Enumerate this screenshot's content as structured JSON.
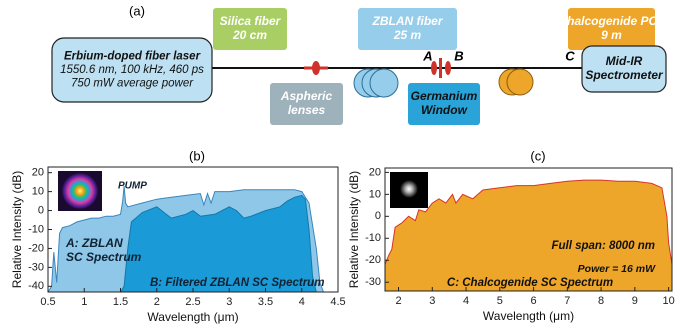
{
  "diagram": {
    "label": "(a)",
    "boxes": [
      {
        "lines": [
          "Silica fiber",
          "20 cm"
        ],
        "color": "#a9cf64"
      },
      {
        "lines": [
          "ZBLAN fiber",
          "25 m"
        ],
        "color": "#95cdea"
      },
      {
        "lines": [
          "Chalcogenide PCF",
          "9 m"
        ],
        "color": "#eea62a"
      },
      {
        "lines": [
          "Erbium-doped fiber laser",
          "1550.6 nm, 100 kHz, 460 ps",
          "750 mW average power"
        ],
        "color": "#bde0f3"
      },
      {
        "lines": [
          "Mid-IR",
          "Spectrometer"
        ],
        "color": "#bde0f3"
      },
      {
        "lines": [
          "Aspheric",
          "lenses"
        ],
        "color": "#9db2ba"
      },
      {
        "lines": [
          "Germanium",
          "Window"
        ],
        "color": "#2aa3d8"
      }
    ],
    "markers": [
      "A",
      "B",
      "C"
    ]
  },
  "chart_data": [
    {
      "type": "area",
      "title": "(b)",
      "xlabel": "Wavelength (μm)",
      "ylabel": "Relative Intensity (dB)",
      "xlim": [
        0.5,
        4.5
      ],
      "ylim": [
        -43,
        23
      ],
      "xticks": [
        0.5,
        1,
        1.5,
        2,
        2.5,
        3,
        3.5,
        4,
        4.5
      ],
      "yticks": [
        -40,
        -30,
        -20,
        -10,
        0,
        10,
        20
      ],
      "series": [
        {
          "name": "A: ZBLAN SC Spectrum",
          "color": "#8ec7e8",
          "edge": "#3a86bd",
          "x": [
            0.5,
            0.55,
            0.58,
            0.62,
            0.66,
            0.7,
            0.8,
            0.9,
            1.0,
            1.1,
            1.2,
            1.3,
            1.4,
            1.5,
            1.53,
            1.55,
            1.57,
            1.6,
            1.8,
            2.0,
            2.2,
            2.4,
            2.6,
            2.65,
            2.7,
            2.75,
            2.8,
            3.0,
            3.2,
            3.4,
            3.6,
            3.8,
            3.9,
            4.0,
            4.1,
            4.2,
            4.25,
            4.3,
            4.5
          ],
          "values": [
            -43,
            -40,
            -22,
            -38,
            -12,
            -9,
            -8,
            -6,
            -5,
            -4,
            -4,
            -3,
            -3,
            -2,
            5,
            13,
            4,
            2,
            4,
            6,
            7,
            8,
            9,
            3,
            9,
            4,
            10,
            10,
            11,
            11,
            11,
            11,
            11,
            10,
            4,
            -20,
            -38,
            -43,
            -43
          ]
        },
        {
          "name": "B: Filtered ZBLAN SC Spectrum",
          "color": "#1a9ad6",
          "edge": "#1478a8",
          "x": [
            1.5,
            1.55,
            1.6,
            1.65,
            1.8,
            2.0,
            2.1,
            2.2,
            2.4,
            2.5,
            2.6,
            2.8,
            3.0,
            3.1,
            3.2,
            3.3,
            3.5,
            3.7,
            3.8,
            3.9,
            4.0,
            4.05,
            4.1,
            4.15,
            4.2
          ],
          "values": [
            -43,
            -40,
            -20,
            -6,
            -1,
            2,
            -1,
            -4,
            -2,
            0,
            -3,
            -2,
            2,
            0,
            -4,
            -3,
            0,
            2,
            5,
            7,
            8,
            6,
            -10,
            -35,
            -43
          ]
        }
      ],
      "annotations": [
        "PUMP",
        "A: ZBLAN",
        "SC Spectrum",
        "B: Filtered ZBLAN SC Spectrum"
      ]
    },
    {
      "type": "area",
      "title": "(c)",
      "xlabel": "Wavelength (μm)",
      "ylabel": "Relative Intensity (dB)",
      "xlim": [
        1.6,
        10.1
      ],
      "ylim": [
        -34,
        22
      ],
      "xticks": [
        2,
        3,
        4,
        5,
        6,
        7,
        8,
        9,
        10
      ],
      "yticks": [
        -30,
        -20,
        -10,
        0,
        10,
        20
      ],
      "series": [
        {
          "name": "C: Chalcogenide SC Spectrum",
          "color": "#eea62a",
          "edge": "#d8332a",
          "x": [
            1.6,
            1.7,
            1.8,
            1.9,
            2.0,
            2.1,
            2.3,
            2.5,
            2.6,
            2.8,
            3.0,
            3.2,
            3.4,
            3.6,
            3.7,
            3.9,
            4.2,
            4.5,
            5.0,
            5.5,
            6.0,
            6.5,
            7.0,
            7.5,
            8.0,
            8.5,
            9.0,
            9.5,
            9.8,
            9.95,
            10.0,
            10.1
          ],
          "values": [
            -22,
            -18,
            -15,
            -5,
            -4,
            -3,
            0,
            -2,
            3,
            2,
            6,
            8,
            6,
            10,
            6,
            10,
            8,
            12,
            13,
            14,
            14,
            15,
            16,
            16.5,
            16.5,
            16,
            16,
            15,
            13,
            0,
            -12,
            -22
          ]
        }
      ],
      "annotations": [
        "Full span: 8000 nm",
        "Power = 16 mW",
        "C: Chalcogenide SC Spectrum"
      ]
    }
  ]
}
